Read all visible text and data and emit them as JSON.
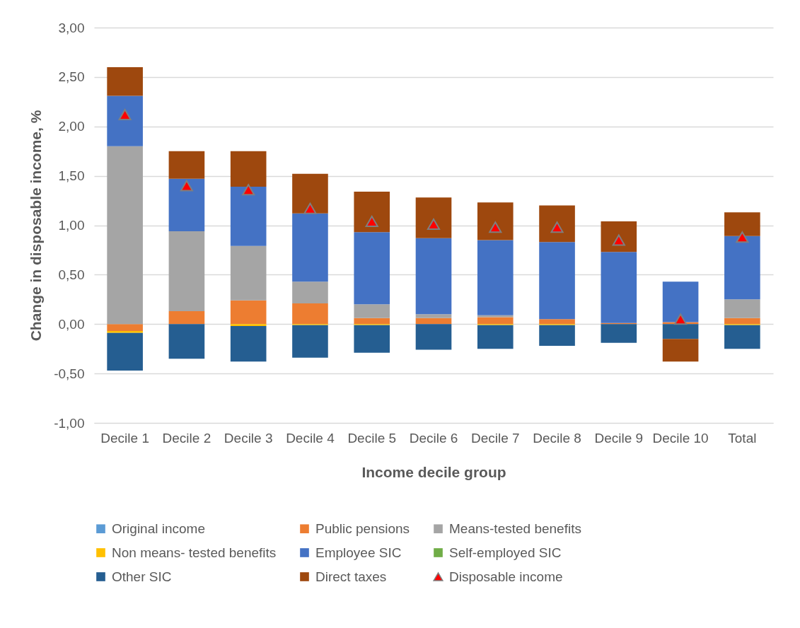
{
  "chart_data": {
    "type": "bar",
    "stacked": true,
    "xlabel": "Income decile group",
    "ylabel": "Change in disposable income, %",
    "categories": [
      "Decile 1",
      "Decile 2",
      "Decile 3",
      "Decile 4",
      "Decile 5",
      "Decile 6",
      "Decile 7",
      "Decile 8",
      "Decile 9",
      "Decile 10",
      "Total"
    ],
    "series": [
      {
        "name": "Original income",
        "color": "#5b9bd5",
        "values": [
          0,
          0,
          0,
          0,
          0,
          0,
          0,
          0,
          0,
          0,
          0
        ]
      },
      {
        "name": "Public pensions",
        "color": "#ed7d31",
        "values": [
          -0.07,
          0.13,
          0.24,
          0.21,
          0.06,
          0.06,
          0.07,
          0.05,
          0.01,
          0.02,
          0.06
        ]
      },
      {
        "name": "Means-tested benefits",
        "color": "#a5a5a5",
        "values": [
          1.8,
          0.81,
          0.55,
          0.22,
          0.14,
          0.04,
          0.02,
          null,
          null,
          null,
          0.19
        ]
      },
      {
        "name": "Non means- tested benefits",
        "color": "#ffc000",
        "values": [
          -0.02,
          0,
          -0.02,
          -0.01,
          -0.01,
          0,
          -0.01,
          -0.01,
          0,
          0,
          -0.01
        ]
      },
      {
        "name": "Employee SIC",
        "color": "#4472c4",
        "values": [
          0.51,
          0.53,
          0.6,
          0.69,
          0.73,
          0.77,
          0.76,
          0.78,
          0.72,
          0.41,
          0.64
        ]
      },
      {
        "name": "Self-employed SIC",
        "color": "#70ad47",
        "values": [
          0,
          0,
          0,
          0,
          0,
          0,
          0,
          0,
          0,
          0,
          0
        ]
      },
      {
        "name": "Other SIC",
        "color": "#255e91",
        "values": [
          -0.38,
          -0.35,
          -0.36,
          -0.33,
          -0.28,
          -0.26,
          -0.24,
          -0.21,
          -0.19,
          -0.15,
          -0.24
        ]
      },
      {
        "name": "Direct taxes",
        "color": "#9e480e",
        "values": [
          0.29,
          0.28,
          0.36,
          0.4,
          0.41,
          0.41,
          0.38,
          0.37,
          0.31,
          -0.23,
          0.24
        ]
      },
      {
        "name": "Disposable income",
        "type": "scatter",
        "marker": "triangle",
        "color": "#ff0000",
        "values": [
          2.12,
          1.4,
          1.36,
          1.17,
          1.04,
          1.01,
          0.98,
          0.98,
          0.85,
          0.05,
          0.88
        ]
      }
    ],
    "ylim": [
      -1,
      3
    ],
    "yticks": [
      {
        "value": -1,
        "label": "-1,00"
      },
      {
        "value": -0.5,
        "label": "-0,50"
      },
      {
        "value": 0,
        "label": "0,00"
      },
      {
        "value": 0.5,
        "label": "0,50"
      },
      {
        "value": 1,
        "label": "1,00"
      },
      {
        "value": 1.5,
        "label": "1,50"
      },
      {
        "value": 2,
        "label": "2,00"
      },
      {
        "value": 2.5,
        "label": "2,50"
      },
      {
        "value": 3,
        "label": "3,00"
      }
    ],
    "grid": "y",
    "legend": "bottom"
  }
}
